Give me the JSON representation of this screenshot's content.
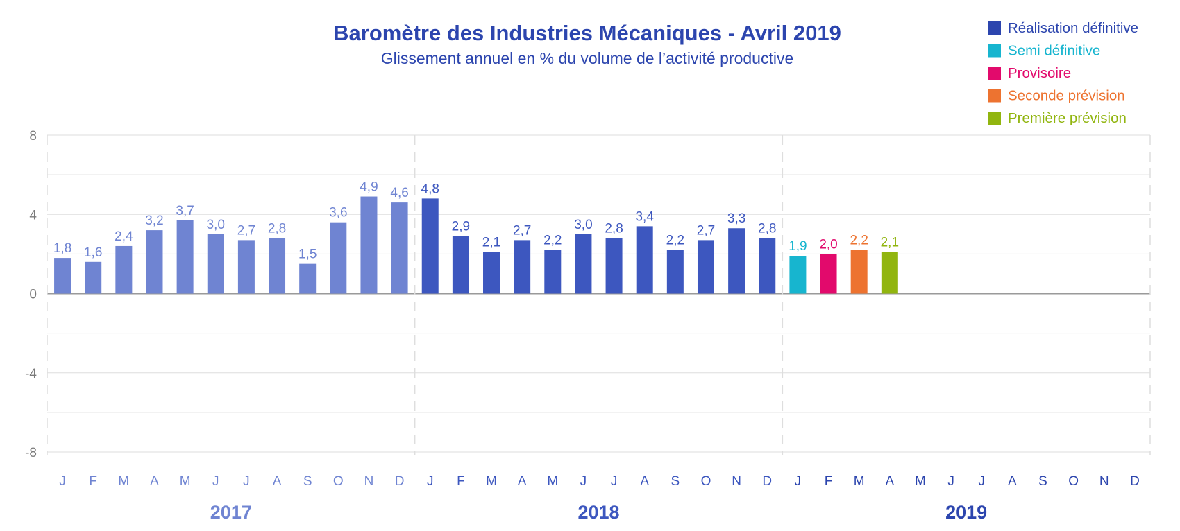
{
  "chart_data": {
    "type": "bar",
    "title": "Baromètre des Industries Mécaniques - Avril 2019",
    "subtitle": "Glissement annuel en % du volume de l’activité productive",
    "ylim": [
      -8,
      8
    ],
    "yticks": [
      {
        "value": 8,
        "label": "8"
      },
      {
        "value": 4,
        "label": "4"
      },
      {
        "value": 0,
        "label": "0"
      },
      {
        "value": -4,
        "label": "-4"
      },
      {
        "value": -8,
        "label": "-8"
      }
    ],
    "grid": true,
    "legend_position": "top-right",
    "years": [
      {
        "label": "2017",
        "color": "#6f84d2"
      },
      {
        "label": "2018",
        "color": "#3d57bf"
      },
      {
        "label": "2019",
        "color": "#2c45ae"
      }
    ],
    "months": [
      "J",
      "F",
      "M",
      "A",
      "M",
      "J",
      "J",
      "A",
      "S",
      "O",
      "N",
      "D"
    ],
    "legend": [
      {
        "label": "Réalisation définitive",
        "color": "#2c45ae"
      },
      {
        "label": "Semi définitive",
        "color": "#17b5cf"
      },
      {
        "label": "Provisoire",
        "color": "#e20a6c"
      },
      {
        "label": "Seconde prévision",
        "color": "#ed7330"
      },
      {
        "label": "Première prévision",
        "color": "#91b50f"
      }
    ],
    "bars": [
      {
        "value": 1.8,
        "label": "1,8",
        "color": "#6f84d2"
      },
      {
        "value": 1.6,
        "label": "1,6",
        "color": "#6f84d2"
      },
      {
        "value": 2.4,
        "label": "2,4",
        "color": "#6f84d2"
      },
      {
        "value": 3.2,
        "label": "3,2",
        "color": "#6f84d2"
      },
      {
        "value": 3.7,
        "label": "3,7",
        "color": "#6f84d2"
      },
      {
        "value": 3.0,
        "label": "3,0",
        "color": "#6f84d2"
      },
      {
        "value": 2.7,
        "label": "2,7",
        "color": "#6f84d2"
      },
      {
        "value": 2.8,
        "label": "2,8",
        "color": "#6f84d2"
      },
      {
        "value": 1.5,
        "label": "1,5",
        "color": "#6f84d2"
      },
      {
        "value": 3.6,
        "label": "3,6",
        "color": "#6f84d2"
      },
      {
        "value": 4.9,
        "label": "4,9",
        "color": "#6f84d2"
      },
      {
        "value": 4.6,
        "label": "4,6",
        "color": "#6f84d2"
      },
      {
        "value": 4.8,
        "label": "4,8",
        "color": "#3d57bf"
      },
      {
        "value": 2.9,
        "label": "2,9",
        "color": "#3d57bf"
      },
      {
        "value": 2.1,
        "label": "2,1",
        "color": "#3d57bf"
      },
      {
        "value": 2.7,
        "label": "2,7",
        "color": "#3d57bf"
      },
      {
        "value": 2.2,
        "label": "2,2",
        "color": "#3d57bf"
      },
      {
        "value": 3.0,
        "label": "3,0",
        "color": "#3d57bf"
      },
      {
        "value": 2.8,
        "label": "2,8",
        "color": "#3d57bf"
      },
      {
        "value": 3.4,
        "label": "3,4",
        "color": "#3d57bf"
      },
      {
        "value": 2.2,
        "label": "2,2",
        "color": "#3d57bf"
      },
      {
        "value": 2.7,
        "label": "2,7",
        "color": "#3d57bf"
      },
      {
        "value": 3.3,
        "label": "3,3",
        "color": "#3d57bf"
      },
      {
        "value": 2.8,
        "label": "2,8",
        "color": "#3d57bf"
      },
      {
        "value": 1.9,
        "label": "1,9",
        "color": "#17b5cf"
      },
      {
        "value": 2.0,
        "label": "2,0",
        "color": "#e20a6c"
      },
      {
        "value": 2.2,
        "label": "2,2",
        "color": "#ed7330"
      },
      {
        "value": 2.1,
        "label": "2,1",
        "color": "#91b50f"
      }
    ],
    "colors": {
      "title": "#2c45ae",
      "subtitle": "#2c45ae",
      "axis_text": "#7a7a7a",
      "grid": "#dedede",
      "zero_line": "#9a9a9a"
    }
  }
}
